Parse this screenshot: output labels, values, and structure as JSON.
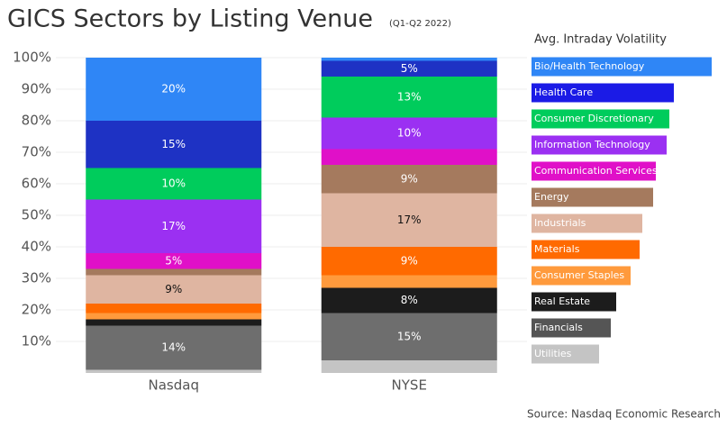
{
  "chart_data": [
    {
      "type": "stacked-bar",
      "title": "GICS Sectors by Listing Venue",
      "subtitle": "(Q1-Q2 2022)",
      "source": "Source: Nasdaq Economic Research",
      "categories": [
        "Nasdaq",
        "NYSE"
      ],
      "ylim": [
        0,
        100
      ],
      "yticks": [
        {
          "value": 10,
          "label": "10%"
        },
        {
          "value": 20,
          "label": "20%"
        },
        {
          "value": 30,
          "label": "30%"
        },
        {
          "value": 40,
          "label": "40%"
        },
        {
          "value": 50,
          "label": "50%"
        },
        {
          "value": 60,
          "label": "60%"
        },
        {
          "value": 70,
          "label": "70%"
        },
        {
          "value": 80,
          "label": "80%"
        },
        {
          "value": 90,
          "label": "90%"
        },
        {
          "value": 100,
          "label": "100%"
        }
      ],
      "grid": true,
      "series": [
        {
          "color": "#c4c4c4",
          "values": [
            1,
            4
          ],
          "value_labels": [
            null,
            null
          ]
        },
        {
          "color": "#6e6e6e",
          "values": [
            14,
            15
          ],
          "value_labels": [
            "14%",
            "15%"
          ]
        },
        {
          "color": "#1c1c1c",
          "values": [
            2,
            8
          ],
          "value_labels": [
            null,
            "8%"
          ]
        },
        {
          "color": "#ff9a3c",
          "values": [
            2,
            4
          ],
          "value_labels": [
            null,
            null
          ]
        },
        {
          "color": "#ff6a00",
          "values": [
            3,
            9
          ],
          "value_labels": [
            null,
            "9%"
          ]
        },
        {
          "color": "#dfb5a1",
          "values": [
            9,
            17
          ],
          "value_labels": [
            "9%",
            "17%"
          ]
        },
        {
          "color": "#a57a5e",
          "values": [
            2,
            9
          ],
          "value_labels": [
            null,
            "9%"
          ]
        },
        {
          "color": "#e010c8",
          "values": [
            5,
            5
          ],
          "value_labels": [
            "5%",
            null
          ]
        },
        {
          "color": "#9b30f2",
          "values": [
            17,
            10
          ],
          "value_labels": [
            "17%",
            "10%"
          ]
        },
        {
          "color": "#00cc5c",
          "values": [
            10,
            13
          ],
          "value_labels": [
            "10%",
            "13%"
          ]
        },
        {
          "color": "#1e32c4",
          "values": [
            15,
            5
          ],
          "value_labels": [
            "15%",
            "5%"
          ]
        },
        {
          "color": "#2f86f6",
          "values": [
            20,
            1
          ],
          "value_labels": [
            "20%",
            null
          ]
        }
      ]
    },
    {
      "type": "hbar",
      "title": "Avg. Intraday Volatility",
      "xlim": [
        0,
        200
      ],
      "categories": [
        "Bio/Health Technology",
        "Health Care",
        "Consumer Discretionary",
        "Information Technology",
        "Communication Services",
        "Energy",
        "Industrials",
        "Materials",
        "Consumer Staples",
        "Real Estate",
        "Financials",
        "Utilities"
      ],
      "colors": [
        "#2f86f6",
        "#1b1be6",
        "#00cc5c",
        "#9b30f2",
        "#e010c8",
        "#a57a5e",
        "#dfb5a1",
        "#ff6a00",
        "#ff9a3c",
        "#1c1c1c",
        "#555555",
        "#c4c4c4"
      ],
      "values": [
        200,
        158,
        153,
        150,
        138,
        135,
        123,
        120,
        110,
        94,
        88,
        75
      ]
    }
  ]
}
